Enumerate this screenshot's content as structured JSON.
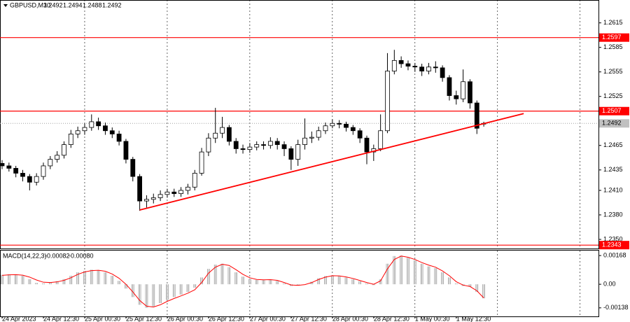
{
  "chart_data": {
    "type": "candlestick",
    "title": "GBPUSD,M30",
    "categories": [
      "24 Apr 2023",
      null,
      null,
      null,
      null,
      null,
      "24 Apr 12:30",
      null,
      null,
      null,
      null,
      null,
      "25 Apr 00:30",
      null,
      null,
      null,
      null,
      null,
      "25 Apr 12:30",
      null,
      null,
      null,
      null,
      null,
      "26 Apr 00:30",
      null,
      null,
      null,
      null,
      null,
      "26 Apr 12:30",
      null,
      null,
      null,
      null,
      null,
      "27 Apr 00:30",
      null,
      null,
      null,
      null,
      null,
      "27 Apr 12:30",
      null,
      null,
      null,
      null,
      null,
      "28 Apr 00:30",
      null,
      null,
      null,
      null,
      null,
      "28 Apr 12:30",
      null,
      null,
      null,
      null,
      null,
      "1 May 00:30",
      null,
      null,
      null,
      null,
      null,
      "1 May 12:30",
      null,
      null,
      null,
      null
    ],
    "open": [
      1.2443,
      1.244,
      1.2437,
      1.2431,
      1.2427,
      1.242,
      1.2427,
      1.244,
      1.2448,
      1.2453,
      1.2466,
      1.2479,
      1.2483,
      1.2487,
      1.2494,
      1.2489,
      1.2483,
      1.2479,
      1.247,
      1.2448,
      1.2427,
      1.2397,
      1.2399,
      1.2401,
      1.2405,
      1.2408,
      1.2406,
      1.241,
      1.2414,
      1.2431,
      1.2457,
      1.2474,
      1.248,
      1.2487,
      1.247,
      1.2461,
      1.246,
      1.2463,
      1.2466,
      1.2465,
      1.247,
      1.2466,
      1.2461,
      1.2448,
      1.2466,
      1.2474,
      1.2475,
      1.2483,
      1.2489,
      1.2492,
      1.2491,
      1.2487,
      1.2483,
      1.2474,
      1.2457,
      1.2461,
      1.2483,
      1.2556,
      1.2569,
      1.2565,
      1.2562,
      1.2561,
      1.2556,
      1.2561,
      1.256,
      1.2548,
      1.2526,
      1.2522,
      1.2543,
      1.2517,
      1.2492
    ],
    "high": [
      1.2447,
      1.2444,
      1.244,
      1.2435,
      1.243,
      1.2431,
      1.2444,
      1.2452,
      1.2458,
      1.247,
      1.2484,
      1.2488,
      1.2492,
      1.2503,
      1.2499,
      1.2493,
      1.2487,
      1.2483,
      1.2473,
      1.2451,
      1.243,
      1.2404,
      1.2406,
      1.241,
      1.2412,
      1.2412,
      1.2414,
      1.2418,
      1.2435,
      1.2462,
      1.248,
      1.2511,
      1.25,
      1.249,
      1.2474,
      1.2466,
      1.2468,
      1.247,
      1.247,
      1.2475,
      1.2474,
      1.247,
      1.2464,
      1.2472,
      1.2498,
      1.2482,
      1.2488,
      1.2493,
      1.2497,
      1.2496,
      1.2494,
      1.249,
      1.2486,
      1.2477,
      1.2466,
      1.2503,
      1.2578,
      1.2582,
      1.2574,
      1.2569,
      1.2566,
      1.2565,
      1.2566,
      1.2568,
      1.2563,
      1.2551,
      1.2532,
      1.2558,
      1.2546,
      1.252,
      1.2494
    ],
    "low": [
      1.2436,
      1.2433,
      1.2426,
      1.2421,
      1.241,
      1.2416,
      1.2423,
      1.2436,
      1.2444,
      1.2449,
      1.2462,
      1.2474,
      1.2478,
      1.2483,
      1.2484,
      1.2478,
      1.2474,
      1.2465,
      1.2443,
      1.2421,
      1.2385,
      1.2389,
      1.2394,
      1.2397,
      1.2401,
      1.2402,
      1.2402,
      1.2405,
      1.241,
      1.2428,
      1.2452,
      1.2468,
      1.2474,
      1.2465,
      1.2455,
      1.2455,
      1.2456,
      1.2459,
      1.246,
      1.2461,
      1.246,
      1.2452,
      1.2435,
      1.244,
      1.246,
      1.2468,
      1.2471,
      1.2479,
      1.2486,
      1.2486,
      1.2482,
      1.2478,
      1.2468,
      1.2442,
      1.2446,
      1.2458,
      1.248,
      1.2552,
      1.256,
      1.2557,
      1.2555,
      1.255,
      1.2552,
      1.2554,
      1.2543,
      1.252,
      1.2515,
      1.2518,
      1.251,
      1.2479,
      1.2488
    ],
    "close": [
      1.244,
      1.2437,
      1.2431,
      1.2427,
      1.242,
      1.2427,
      1.244,
      1.2448,
      1.2453,
      1.2466,
      1.2479,
      1.2483,
      1.2487,
      1.2494,
      1.2489,
      1.2483,
      1.2479,
      1.247,
      1.2448,
      1.2427,
      1.2397,
      1.2399,
      1.2401,
      1.2405,
      1.2408,
      1.2406,
      1.241,
      1.2414,
      1.2431,
      1.2457,
      1.2474,
      1.248,
      1.2487,
      1.247,
      1.2461,
      1.246,
      1.2463,
      1.2466,
      1.2465,
      1.247,
      1.2466,
      1.2461,
      1.2448,
      1.2466,
      1.2474,
      1.2475,
      1.2483,
      1.2489,
      1.2492,
      1.2491,
      1.2487,
      1.2483,
      1.2474,
      1.2457,
      1.2461,
      1.2483,
      1.2556,
      1.2569,
      1.2565,
      1.2562,
      1.2561,
      1.2556,
      1.2561,
      1.256,
      1.2548,
      1.2526,
      1.2522,
      1.2543,
      1.2517,
      1.2486,
      1.2492
    ],
    "ylim": [
      1.2338,
      1.2643
    ],
    "yticks": [
      1.2615,
      1.2585,
      1.2555,
      1.2525,
      1.2465,
      1.2435,
      {
        "value": 1.241,
        "label": "1.2410"
      },
      {
        "value": 1.238,
        "label": "1.2380"
      },
      {
        "value": 1.235,
        "label": "1.2350"
      }
    ],
    "hlines": [
      {
        "value": 1.2597,
        "color": "#ff0000"
      },
      {
        "value": 1.2507,
        "color": "#ff0000"
      },
      {
        "value": 1.2343,
        "color": "#ff0000"
      }
    ],
    "trendline": {
      "x": [
        20,
        75.8
      ],
      "y": [
        1.2386,
        1.2504
      ],
      "color": "#ff0000"
    },
    "grid": true,
    "indicator": {
      "type": "macd",
      "title": "MACD(14,22,3)",
      "ylim": [
        -0.00188,
        0.00197
      ],
      "yticks": [
        0.00168,
        {
          "value": 0,
          "label": "0.00"
        },
        -0.00138
      ],
      "histogram": {
        "color": "#a0a0a0",
        "values": [
          0.00055,
          0.00058,
          0.00055,
          0.0005,
          0.0003,
          8e-05,
          5e-05,
          0.00012,
          0.00018,
          0.0003,
          0.0005,
          0.0007,
          0.00078,
          0.00085,
          0.00082,
          0.0007,
          0.0005,
          0.0002,
          -0.00025,
          -0.00075,
          -0.0012,
          -0.00138,
          -0.0013,
          -0.0011,
          -0.0009,
          -0.00075,
          -0.0006,
          -0.00045,
          -0.0002,
          0.0004,
          0.0009,
          0.00115,
          0.0012,
          0.001,
          0.0007,
          0.00045,
          0.0003,
          0.00025,
          0.00025,
          0.00028,
          0.0002,
          5e-05,
          -0.0001,
          -5e-05,
          0,
          0.00015,
          0.00035,
          0.00048,
          0.00052,
          0.00048,
          0.0004,
          0.0003,
          0.00018,
          5e-05,
          -5e-05,
          0.0003,
          0.0012,
          0.00165,
          0.00168,
          0.00155,
          0.0014,
          0.0012,
          0.00105,
          0.00095,
          0.0007,
          0.0004,
          5e-05,
          -0.0001,
          -0.00015,
          -0.00045,
          -0.00082
        ]
      },
      "signal": {
        "color": "#ff0000",
        "last_label": "-0.00080",
        "values": [
          0.00052,
          0.00055,
          0.00056,
          0.00053,
          0.00042,
          0.00025,
          0.00012,
          0.0001,
          0.00014,
          0.00023,
          0.00038,
          0.00058,
          0.00072,
          0.0008,
          0.00082,
          0.00076,
          0.0006,
          0.00035,
          0,
          -0.00045,
          -0.00095,
          -0.00128,
          -0.00133,
          -0.0012,
          -0.001,
          -0.00083,
          -0.00068,
          -0.00052,
          -0.00032,
          0.0001,
          0.00065,
          0.001,
          0.00117,
          0.0011,
          0.00085,
          0.00058,
          0.00038,
          0.00028,
          0.00026,
          0.00027,
          0.00023,
          0.0001,
          -4e-05,
          -6e-05,
          -2e-05,
          0.0001,
          0.00028,
          0.00042,
          0.0005,
          0.00049,
          0.00043,
          0.00034,
          0.00022,
          0.0001,
          0,
          0.0002,
          0.0009,
          0.00145,
          0.00165,
          0.00158,
          0.00145,
          0.00127,
          0.00112,
          0.001,
          0.00078,
          0.0005,
          0.00015,
          -5e-05,
          -0.00013,
          -0.00038,
          -0.0008
        ]
      }
    }
  }
}
